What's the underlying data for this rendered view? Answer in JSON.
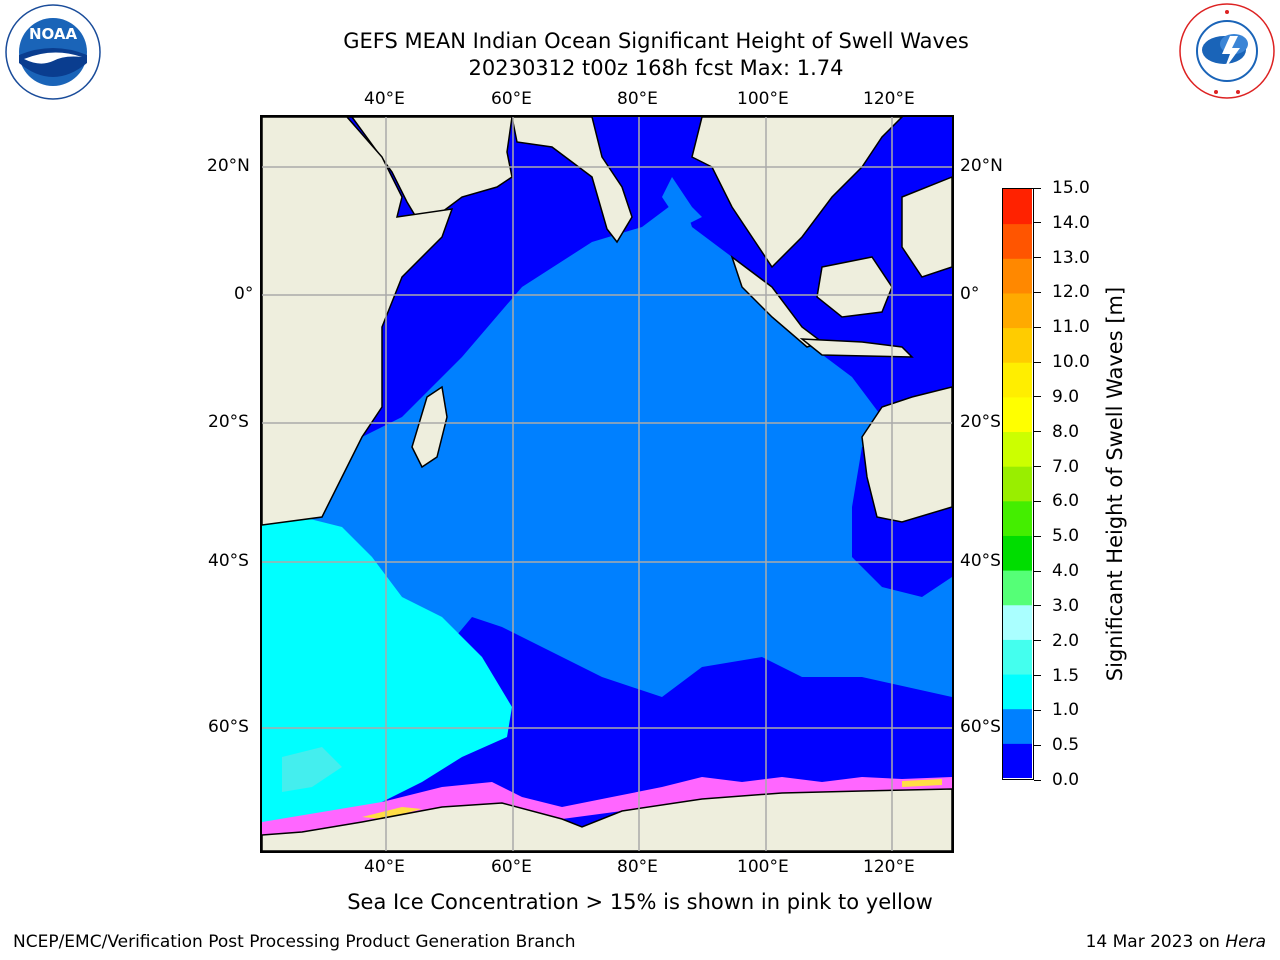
{
  "title": {
    "line1": "GEFS MEAN Indian Ocean Significant Height of Swell Waves",
    "line2": "20230312 t00z 168h fcst   Max: 1.74"
  },
  "logos": {
    "left": {
      "name": "noaa-logo",
      "text": "NOAA",
      "ring_text": "NATIONAL OCEANIC AND ATMOSPHERIC ADMINISTRATION · U.S. DEPARTMENT OF COMMERCE"
    },
    "right": {
      "name": "nws-logo",
      "ring_text": "NATIONAL WEATHER SERVICE"
    }
  },
  "map": {
    "lon_labels": [
      "40°E",
      "60°E",
      "80°E",
      "100°E",
      "120°E"
    ],
    "lat_labels": [
      "20°N",
      "0°",
      "20°S",
      "40°S",
      "60°S"
    ],
    "colors": {
      "land": "#eeeedd",
      "ocean_low": "#0000ff",
      "ocean_mid": "#0080ff",
      "ocean_high": "#00ffff",
      "ice": "#ff66ff"
    }
  },
  "colorbar": {
    "label": "Significant Height of Swell Waves [m]",
    "ticks": [
      "0.0",
      "0.5",
      "1.0",
      "1.5",
      "2.0",
      "3.0",
      "4.0",
      "5.0",
      "6.0",
      "7.0",
      "8.0",
      "9.0",
      "10.0",
      "11.0",
      "12.0",
      "13.0",
      "14.0",
      "15.0"
    ],
    "colors": [
      "#0000ff",
      "#0080ff",
      "#00ffff",
      "#44ffee",
      "#aaffff",
      "#55ff77",
      "#00dd00",
      "#44ee00",
      "#99ee00",
      "#ccff00",
      "#ffff00",
      "#ffee00",
      "#ffcc00",
      "#ffaa00",
      "#ff8800",
      "#ff5500",
      "#ff2200",
      "#ff0000"
    ]
  },
  "bottom_note": "Sea Ice Concentration > 15% is shown in pink to yellow",
  "footer": {
    "left": "NCEP/EMC/Verification Post Processing Product Generation Branch",
    "right_prefix": "14 Mar 2023 on",
    "right_machine": "Hera"
  }
}
